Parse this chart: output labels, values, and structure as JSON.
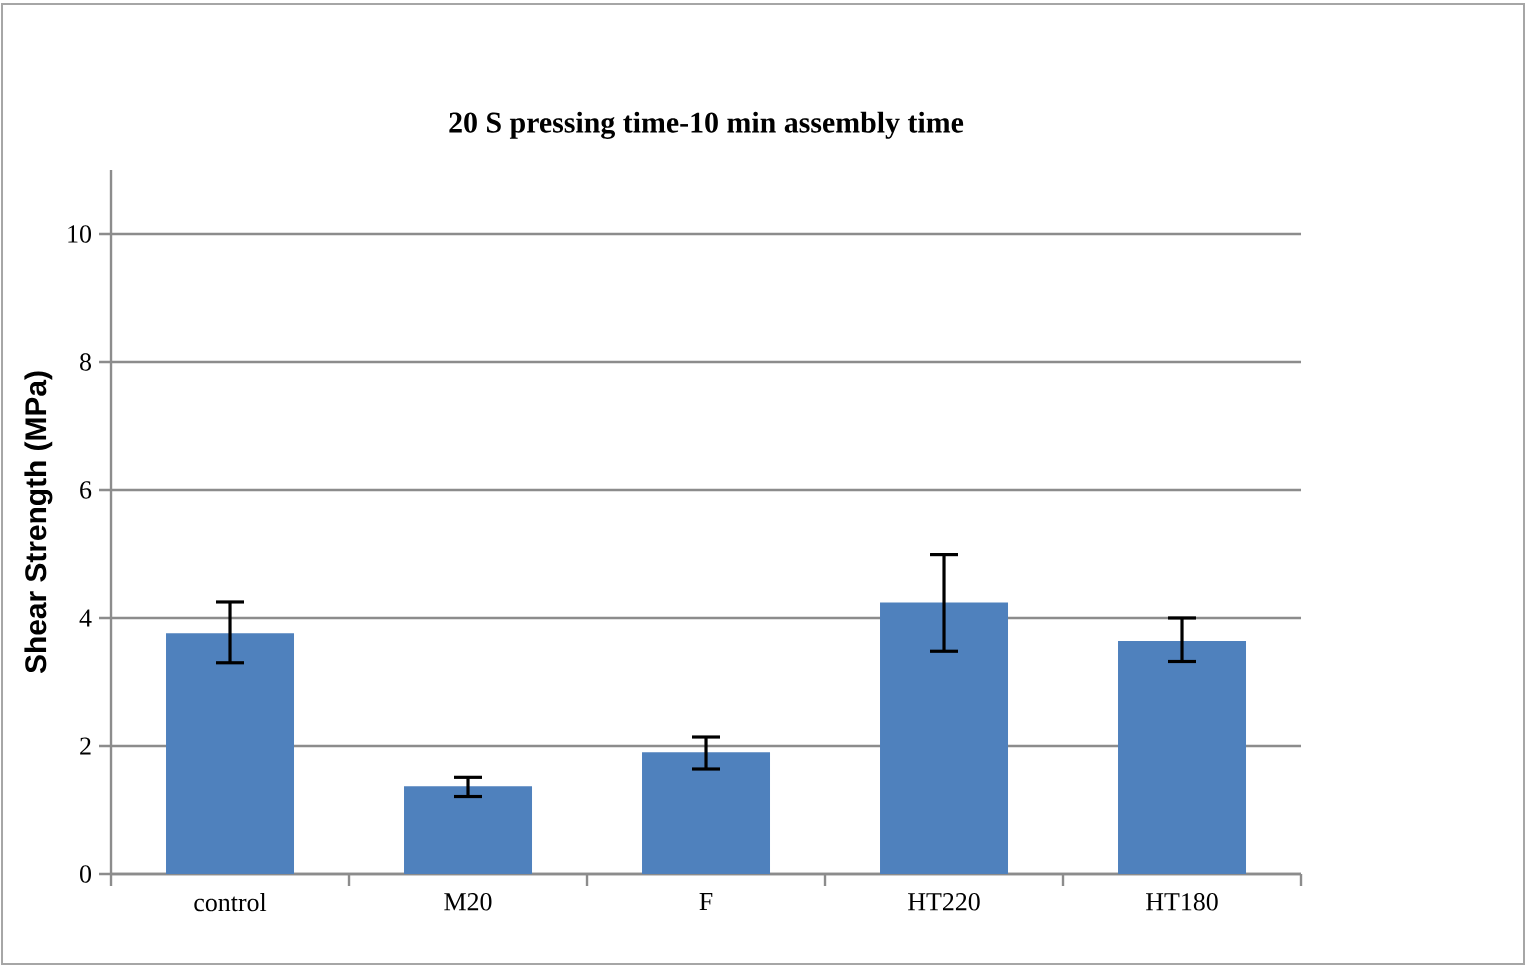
{
  "chart_data": {
    "type": "bar",
    "title": "20 S pressing time-10 min assembly time",
    "ylabel": "Shear Strength (MPa)",
    "categories": [
      "control",
      "M20",
      "F",
      "HT220",
      "HT180"
    ],
    "values": [
      3.76,
      1.37,
      1.9,
      4.24,
      3.64
    ],
    "errors": [
      [
        3.3,
        4.25
      ],
      [
        1.21,
        1.51
      ],
      [
        1.64,
        2.14
      ],
      [
        3.48,
        4.99
      ],
      [
        3.32,
        4.0
      ]
    ],
    "color": "#4f81bd",
    "ylim": [
      0,
      11
    ],
    "yticks": [
      0,
      2,
      4,
      6,
      8,
      10
    ],
    "grid": "y"
  }
}
